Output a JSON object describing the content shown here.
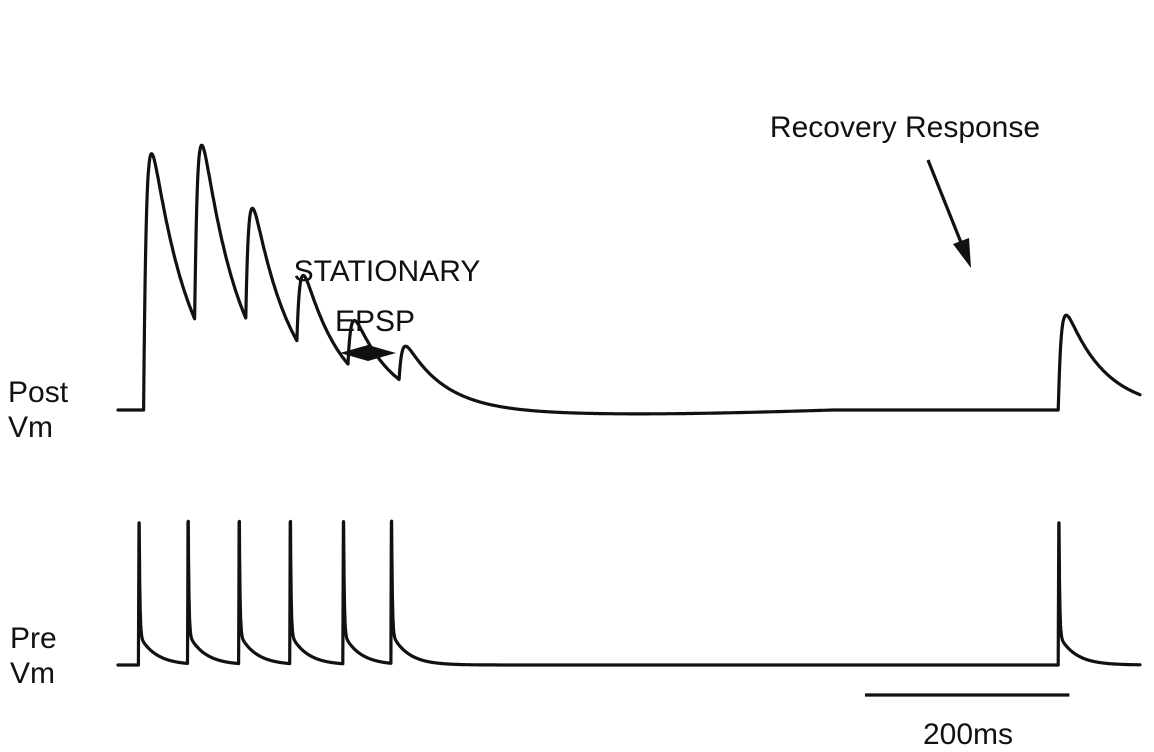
{
  "chart_data": {
    "type": "line",
    "title": "",
    "traces": [
      {
        "name": "Post Vm",
        "label_lines": [
          "Post",
          "Vm"
        ],
        "baseline": 0,
        "events": [
          {
            "t": 25,
            "amp": 1.0
          },
          {
            "t": 75,
            "amp": 0.74
          },
          {
            "t": 125,
            "amp": 0.49
          },
          {
            "t": 175,
            "amp": 0.3
          },
          {
            "t": 225,
            "amp": 0.2
          },
          {
            "t": 275,
            "amp": 0.15
          },
          {
            "t": 920,
            "amp": 0.37
          }
        ]
      },
      {
        "name": "Pre Vm",
        "label_lines": [
          "Pre",
          "Vm"
        ],
        "baseline": 0,
        "spikes_t": [
          20,
          68,
          118,
          168,
          220,
          267,
          920
        ]
      }
    ],
    "x_range_ms": [
      0,
      1000
    ],
    "annotations": {
      "stationary": [
        "STATIONARY",
        "EPSP"
      ],
      "recovery": "Recovery Response"
    },
    "scale_bar": {
      "length_ms": 200,
      "label": "200ms"
    },
    "grid": false,
    "axes_visible": false
  }
}
